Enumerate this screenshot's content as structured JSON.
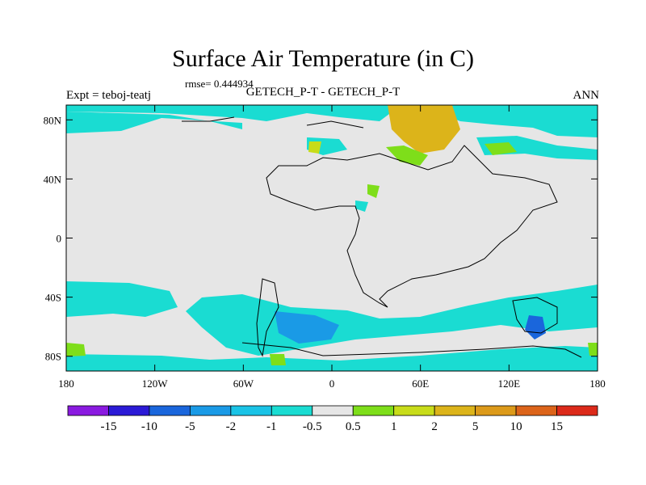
{
  "header": {
    "title": "Surface Air Temperature (in C)",
    "rmse": "rmse= 0.444934",
    "experiment": "Expt = teboj-teatj",
    "comparison": "GETECH_P-T - GETECH_P-T",
    "season": "ANN"
  },
  "chart_data": {
    "type": "heatmap",
    "title": "Surface Air Temperature (in C)",
    "xlim": [
      -180,
      180
    ],
    "ylim": [
      -90,
      90
    ],
    "x_ticks": [
      {
        "value": -180,
        "label": "180"
      },
      {
        "value": -120,
        "label": "120W"
      },
      {
        "value": -60,
        "label": "60W"
      },
      {
        "value": 0,
        "label": "0"
      },
      {
        "value": 60,
        "label": "60E"
      },
      {
        "value": 120,
        "label": "120E"
      },
      {
        "value": 180,
        "label": "180"
      }
    ],
    "y_ticks": [
      {
        "value": 80,
        "label": "80N"
      },
      {
        "value": 40,
        "label": "40N"
      },
      {
        "value": 0,
        "label": "0"
      },
      {
        "value": -40,
        "label": "40S"
      },
      {
        "value": -80,
        "label": "80S"
      }
    ],
    "colorbar": {
      "labels": [
        "-15",
        "-10",
        "-5",
        "-2",
        "-1",
        "-0.5",
        "0.5",
        "1",
        "2",
        "5",
        "10",
        "15"
      ],
      "colors": [
        "#8a1ae0",
        "#2b1ad6",
        "#1a66dc",
        "#1a9ae6",
        "#1ac3e6",
        "#1adcd2",
        "#e6e6e6",
        "#7ede1a",
        "#c8dc1a",
        "#dcb41a",
        "#dc9a1a",
        "#dc641a",
        "#dc2a1a"
      ]
    },
    "background_value_range": "-0.5 to 0.5",
    "regions": [
      {
        "lon": [
          -180,
          -140
        ],
        "lat": [
          70,
          85
        ],
        "bin": "-1 to -0.5"
      },
      {
        "lon": [
          -110,
          -60
        ],
        "lat": [
          78,
          85
        ],
        "bin": "-1 to -0.5"
      },
      {
        "lon": [
          40,
          70
        ],
        "lat": [
          72,
          88
        ],
        "bin": "2 to 5"
      },
      {
        "lon": [
          120,
          140
        ],
        "lat": [
          55,
          62
        ],
        "bin": "0.5 to 1"
      },
      {
        "lon": [
          -180,
          -120
        ],
        "lat": [
          -45,
          -30
        ],
        "bin": "-1 to -0.5"
      },
      {
        "lon": [
          -60,
          40
        ],
        "lat": [
          -80,
          -50
        ],
        "bin": "-2 to -1"
      },
      {
        "lon": [
          -30,
          -10
        ],
        "lat": [
          -70,
          -60
        ],
        "bin": "-5 to -2"
      },
      {
        "lon": [
          140,
          145
        ],
        "lat": [
          -64,
          -58
        ],
        "bin": "-10 to -5"
      },
      {
        "lon": [
          -180,
          -165
        ],
        "lat": [
          -78,
          -72
        ],
        "bin": "0.5 to 1"
      },
      {
        "lon": [
          -45,
          -35
        ],
        "lat": [
          -88,
          -82
        ],
        "bin": "0.5 to 1"
      }
    ]
  }
}
